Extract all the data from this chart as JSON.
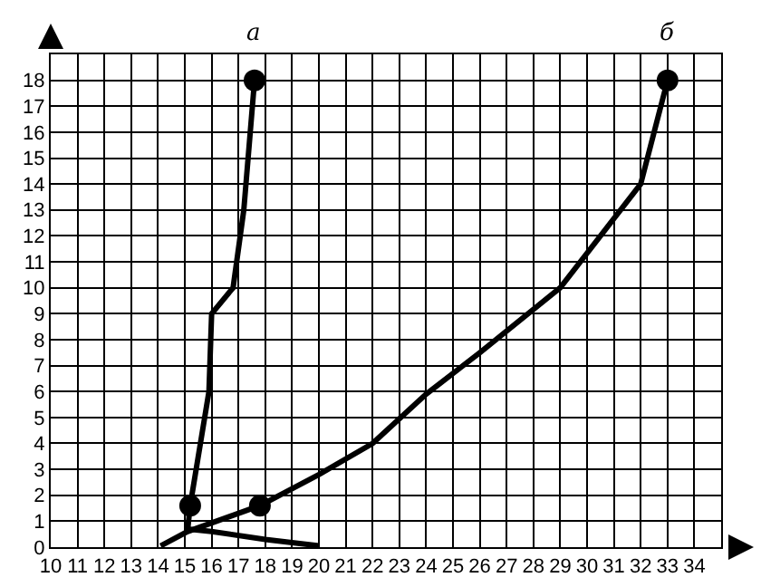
{
  "chart_data": {
    "type": "line",
    "xlim": [
      10,
      35
    ],
    "ylim": [
      0,
      19
    ],
    "xticks": [
      10,
      11,
      12,
      13,
      14,
      15,
      16,
      17,
      18,
      19,
      20,
      21,
      22,
      23,
      24,
      25,
      26,
      27,
      28,
      29,
      30,
      31,
      32,
      33,
      34
    ],
    "yticks": [
      0,
      1,
      2,
      3,
      4,
      5,
      6,
      7,
      8,
      9,
      10,
      11,
      12,
      13,
      14,
      15,
      16,
      17,
      18
    ],
    "grid": true,
    "legend": false,
    "marker": "none",
    "line_style": "solid",
    "series": [
      {
        "name": "а",
        "color": "#000000",
        "x": [
          15.1,
          15.2,
          15.9,
          16,
          16.8,
          17.2,
          17.6
        ],
        "values": [
          0.6,
          1.6,
          6,
          9,
          10,
          13,
          18
        ]
      },
      {
        "name": "б",
        "color": "#000000",
        "x": [
          14.1,
          15.1,
          17.8,
          20,
          22,
          24,
          26,
          29,
          32,
          33
        ],
        "values": [
          0.05,
          0.6,
          1.6,
          2.8,
          4,
          5.9,
          7.5,
          10,
          14,
          18
        ]
      },
      {
        "color": "#000000",
        "x": [
          15.1,
          16,
          18,
          20
        ],
        "values": [
          0.7,
          0.6,
          0.3,
          0.05
        ]
      },
      {
        "type": "scatter",
        "marker": "circle",
        "color": "#000000",
        "x": [
          15.2,
          17.6,
          17.8,
          33
        ],
        "values": [
          1.6,
          18,
          1.6,
          18
        ]
      }
    ]
  }
}
